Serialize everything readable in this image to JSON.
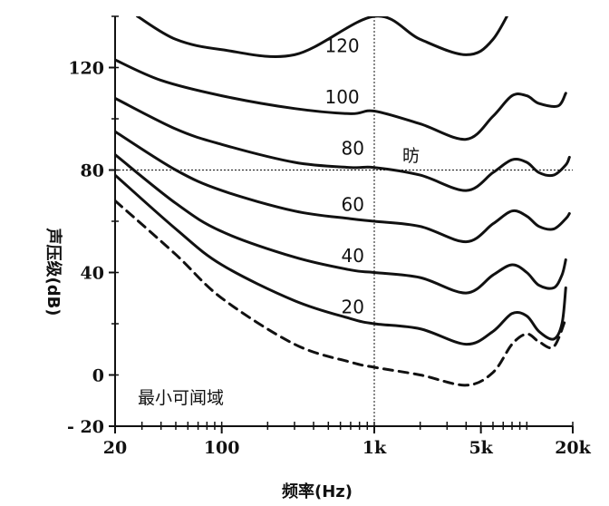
{
  "chart_data": {
    "type": "line",
    "title": "",
    "xlabel": "频率(Hz)",
    "ylabel": "声压级(dB)",
    "xscale": "log",
    "xlim": [
      20,
      20000
    ],
    "ylim": [
      -20,
      140
    ],
    "x_ticks": [
      {
        "value": 20,
        "label": "20"
      },
      {
        "value": 100,
        "label": "100"
      },
      {
        "value": 1000,
        "label": "1k"
      },
      {
        "value": 5000,
        "label": "5k"
      },
      {
        "value": 20000,
        "label": "20k"
      }
    ],
    "y_ticks": [
      {
        "value": -20,
        "label": "- 20"
      },
      {
        "value": 0,
        "label": "0"
      },
      {
        "value": 40,
        "label": "40"
      },
      {
        "value": 80,
        "label": "80"
      },
      {
        "value": 120,
        "label": "120"
      }
    ],
    "reference_lines": {
      "x": 1000,
      "y": 80
    },
    "unit_label": "昉",
    "threshold_label": "最小可闻域",
    "series": [
      {
        "name": "120",
        "style": "solid",
        "points": [
          [
            28,
            140
          ],
          [
            50,
            131
          ],
          [
            100,
            127
          ],
          [
            300,
            125
          ],
          [
            1000,
            140
          ],
          [
            2000,
            131
          ],
          [
            4000,
            125
          ],
          [
            6000,
            131
          ],
          [
            9000,
            150
          ]
        ]
      },
      {
        "name": "100",
        "style": "solid",
        "points": [
          [
            20,
            123
          ],
          [
            40,
            115
          ],
          [
            100,
            109
          ],
          [
            300,
            104
          ],
          [
            700,
            102
          ],
          [
            1000,
            103
          ],
          [
            2000,
            98
          ],
          [
            4000,
            92
          ],
          [
            6000,
            101
          ],
          [
            8000,
            109
          ],
          [
            10000,
            109
          ],
          [
            12000,
            106
          ],
          [
            16000,
            105
          ],
          [
            18000,
            110
          ]
        ]
      },
      {
        "name": "80",
        "style": "solid",
        "points": [
          [
            20,
            108
          ],
          [
            50,
            96
          ],
          [
            100,
            90
          ],
          [
            300,
            83
          ],
          [
            700,
            81
          ],
          [
            1000,
            81
          ],
          [
            2000,
            78
          ],
          [
            4000,
            72
          ],
          [
            6000,
            79
          ],
          [
            8000,
            84
          ],
          [
            10000,
            83
          ],
          [
            12000,
            79
          ],
          [
            15000,
            78
          ],
          [
            18000,
            82
          ],
          [
            19000,
            85
          ]
        ]
      },
      {
        "name": "60",
        "style": "solid",
        "points": [
          [
            20,
            95
          ],
          [
            50,
            80
          ],
          [
            100,
            72
          ],
          [
            300,
            64
          ],
          [
            700,
            61
          ],
          [
            1000,
            60
          ],
          [
            2000,
            58
          ],
          [
            4000,
            52
          ],
          [
            6000,
            59
          ],
          [
            8000,
            64
          ],
          [
            10000,
            62
          ],
          [
            12000,
            58
          ],
          [
            15000,
            57
          ],
          [
            18000,
            61
          ],
          [
            19000,
            63
          ]
        ]
      },
      {
        "name": "40",
        "style": "solid",
        "points": [
          [
            20,
            86
          ],
          [
            50,
            67
          ],
          [
            100,
            56
          ],
          [
            300,
            46
          ],
          [
            700,
            41
          ],
          [
            1000,
            40
          ],
          [
            2000,
            38
          ],
          [
            4000,
            32
          ],
          [
            6000,
            39
          ],
          [
            8000,
            43
          ],
          [
            10000,
            40
          ],
          [
            12000,
            35
          ],
          [
            15000,
            34
          ],
          [
            17000,
            39
          ],
          [
            18000,
            45
          ]
        ]
      },
      {
        "name": "20",
        "style": "solid",
        "points": [
          [
            20,
            78
          ],
          [
            50,
            57
          ],
          [
            100,
            43
          ],
          [
            300,
            29
          ],
          [
            700,
            22
          ],
          [
            1000,
            20
          ],
          [
            2000,
            18
          ],
          [
            4000,
            12
          ],
          [
            6000,
            17
          ],
          [
            8000,
            24
          ],
          [
            10000,
            23
          ],
          [
            12000,
            17
          ],
          [
            15000,
            14
          ],
          [
            17000,
            20
          ],
          [
            18000,
            34
          ]
        ]
      },
      {
        "name": "",
        "style": "dashed",
        "points": [
          [
            20,
            68
          ],
          [
            50,
            47
          ],
          [
            100,
            30
          ],
          [
            300,
            12
          ],
          [
            700,
            5
          ],
          [
            1000,
            3
          ],
          [
            2000,
            0
          ],
          [
            4000,
            -4
          ],
          [
            6000,
            1
          ],
          [
            8000,
            12
          ],
          [
            10000,
            16
          ],
          [
            12000,
            13
          ],
          [
            15000,
            11
          ],
          [
            18000,
            22
          ]
        ]
      }
    ],
    "curve_labels": [
      {
        "text": "120",
        "x": 800,
        "y": 126
      },
      {
        "text": "100",
        "x": 800,
        "y": 106
      },
      {
        "text": "80",
        "x": 860,
        "y": 86
      },
      {
        "text": "60",
        "x": 860,
        "y": 64
      },
      {
        "text": "40",
        "x": 860,
        "y": 44
      },
      {
        "text": "20",
        "x": 860,
        "y": 24
      }
    ]
  }
}
